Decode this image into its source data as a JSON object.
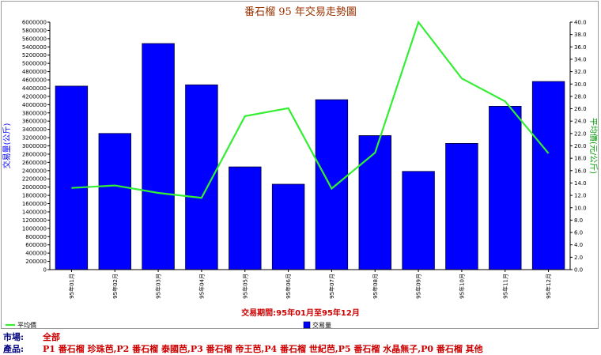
{
  "chart_data": {
    "type": "bar+line",
    "title": "番石榴 95 年交易走勢圖",
    "xlabel": "交易期間:95年01月至95年12月",
    "ylabel_left": "交易量(公斤)",
    "ylabel_right": "平均價(元/公斤)",
    "categories": [
      "95年01月",
      "95年02月",
      "95年03月",
      "95年04月",
      "95年05月",
      "95年06月",
      "95年07月",
      "95年08月",
      "95年09月",
      "95年10月",
      "95年11月",
      "95年12月"
    ],
    "ylim_left": [
      0,
      6000000
    ],
    "yticks_left_step": 200000,
    "ylim_right": [
      0,
      40
    ],
    "yticks_right_step": 2,
    "grid": false,
    "legend_position": "bottom",
    "series": [
      {
        "name": "交易量",
        "type": "bar",
        "axis": "left",
        "color": "#0000ff",
        "values": [
          4450000,
          3300000,
          5480000,
          4480000,
          2490000,
          2070000,
          4120000,
          3250000,
          2380000,
          3060000,
          3960000,
          4560000
        ]
      },
      {
        "name": "平均價",
        "type": "line",
        "axis": "right",
        "color": "#33ee33",
        "values": [
          13.2,
          13.6,
          12.4,
          11.6,
          24.8,
          26.1,
          13.1,
          18.9,
          40.0,
          30.9,
          27.2,
          18.8
        ]
      }
    ]
  },
  "footer": {
    "market_label": "市場:",
    "market_value": "全部",
    "product_label": "產品:",
    "product_value": "P1 番石榴 珍珠芭,P2 番石榴 泰國芭,P3 番石榴 帝王芭,P4 番石榴 世紀芭,P5 番石榴 水晶無子,P0 番石榴 其他"
  },
  "colors": {
    "title": "#993300",
    "axis_title_left": "#0000ff",
    "axis_title_right": "#009900",
    "period": "#cc0000"
  }
}
